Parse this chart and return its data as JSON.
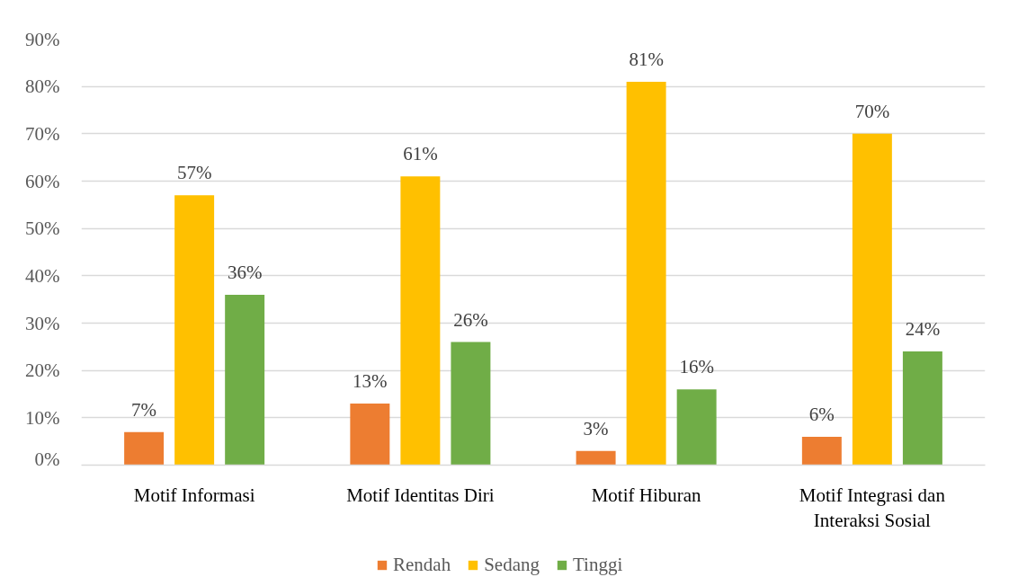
{
  "chart_data": {
    "type": "bar",
    "categories": [
      "Motif Informasi",
      "Motif Identitas Diri",
      "Motif Hiburan",
      "Motif Integrasi dan Interaksi Sosial"
    ],
    "series": [
      {
        "name": "Rendah",
        "color": "#ed7d31",
        "values": [
          7,
          13,
          3,
          6
        ],
        "value_labels": [
          "7%",
          "13%",
          "3%",
          "6%"
        ]
      },
      {
        "name": "Sedang",
        "color": "#ffc000",
        "values": [
          57,
          61,
          81,
          70
        ],
        "value_labels": [
          "57%",
          "61%",
          "81%",
          "70%"
        ]
      },
      {
        "name": "Tinggi",
        "color": "#70ad47",
        "values": [
          36,
          26,
          16,
          24
        ],
        "value_labels": [
          "36%",
          "26%",
          "16%",
          "24%"
        ]
      }
    ],
    "ylim": [
      0,
      90
    ],
    "yticks": [
      {
        "value": 0,
        "label": "0%"
      },
      {
        "value": 10,
        "label": "10%"
      },
      {
        "value": 20,
        "label": "20%"
      },
      {
        "value": 30,
        "label": "30%"
      },
      {
        "value": 40,
        "label": "40%"
      },
      {
        "value": 50,
        "label": "50%"
      },
      {
        "value": 60,
        "label": "60%"
      },
      {
        "value": 70,
        "label": "70%"
      },
      {
        "value": 80,
        "label": "80%"
      },
      {
        "value": 90,
        "label": "90%"
      }
    ],
    "grid": "y",
    "legend": "bottom"
  }
}
